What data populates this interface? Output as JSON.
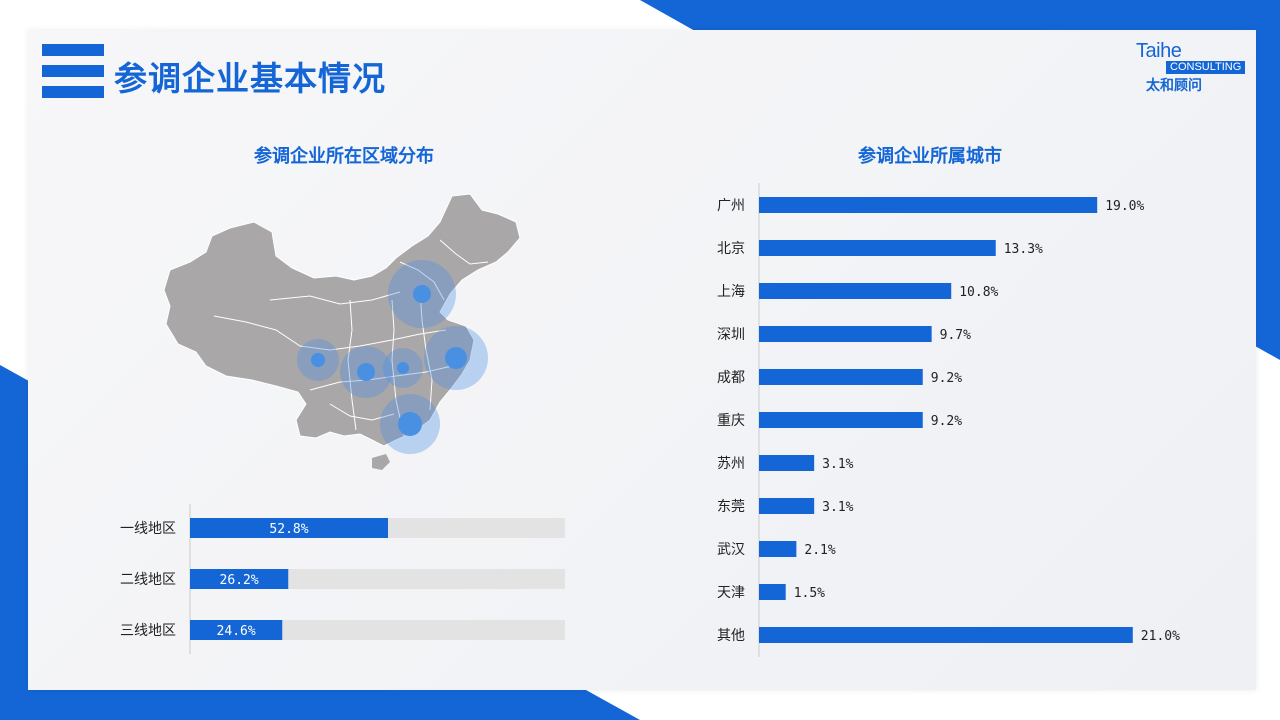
{
  "header": {
    "title": "参调企业基本情况"
  },
  "logo": {
    "name": "Taihe",
    "sub": "CONSULTING",
    "cn": "太和顾问"
  },
  "colors": {
    "accent": "#1466d6",
    "track": "#e3e3e3",
    "map_fill": "#a9a7a8",
    "bubble": "#4a90e2"
  },
  "chart_data": [
    {
      "type": "bar",
      "title": "参调企业所在区域分布",
      "orientation": "horizontal",
      "categories": [
        "一线地区",
        "二线地区",
        "三线地区"
      ],
      "values": [
        52.8,
        26.2,
        24.6
      ],
      "value_labels": [
        "52.8%",
        "26.2%",
        "24.6%"
      ],
      "xlim": [
        0,
        100
      ],
      "unit": "%",
      "grid": false
    },
    {
      "type": "bar",
      "title": "参调企业所属城市",
      "orientation": "horizontal",
      "categories": [
        "广州",
        "北京",
        "上海",
        "深圳",
        "成都",
        "重庆",
        "苏州",
        "东莞",
        "武汉",
        "天津",
        "其他"
      ],
      "values": [
        19.0,
        13.3,
        10.8,
        9.7,
        9.2,
        9.2,
        3.1,
        3.1,
        2.1,
        1.5,
        21.0
      ],
      "value_labels": [
        "19.0%",
        "13.3%",
        "10.8%",
        "9.7%",
        "9.2%",
        "9.2%",
        "3.1%",
        "3.1%",
        "2.1%",
        "1.5%",
        "21.0%"
      ],
      "xlim": [
        0,
        22
      ],
      "unit": "%",
      "grid": false
    }
  ]
}
